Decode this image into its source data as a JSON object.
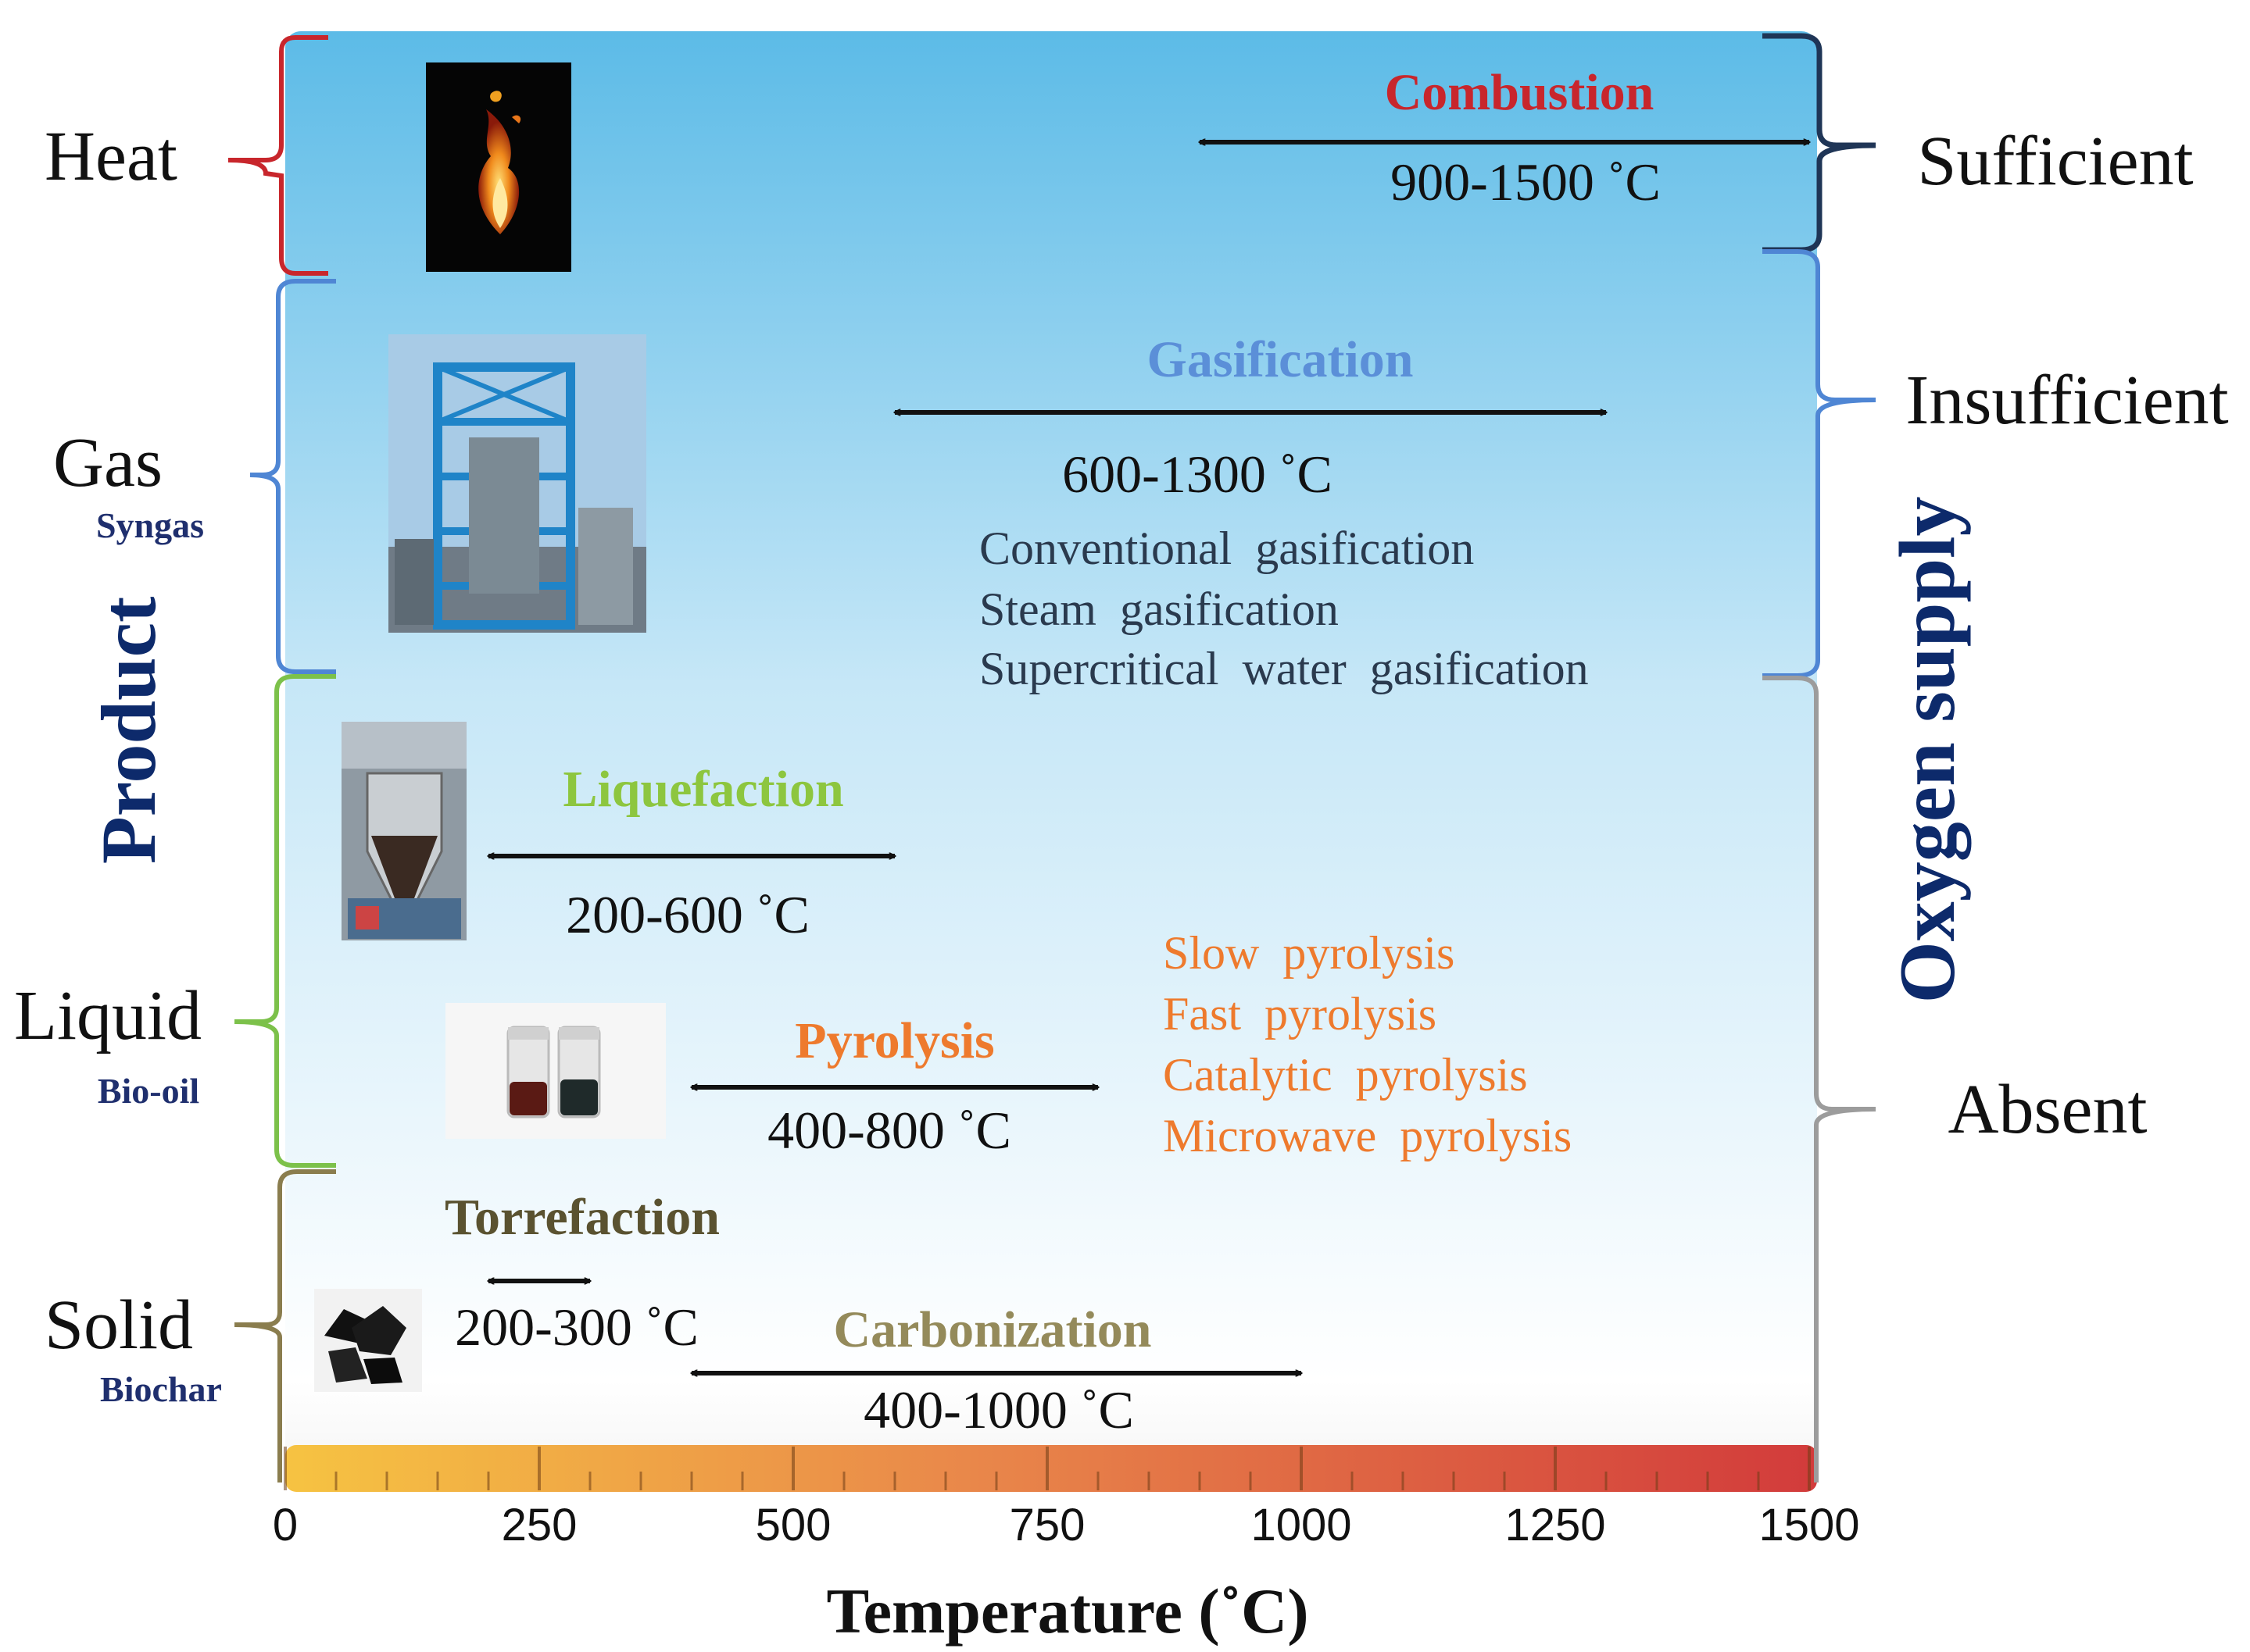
{
  "product_axis": {
    "title": "Product",
    "levels": [
      {
        "key": "heat",
        "label": "Heat",
        "sublabel": "",
        "color": "#c8262c"
      },
      {
        "key": "gas",
        "label": "Gas",
        "sublabel": "Syngas",
        "color": "#4f86d4"
      },
      {
        "key": "liquid",
        "label": "Liquid",
        "sublabel": "Bio-oil",
        "color": "#7cc14a"
      },
      {
        "key": "solid",
        "label": "Solid",
        "sublabel": "Biochar",
        "color": "#8a7d4e"
      }
    ]
  },
  "oxygen_axis": {
    "title": "Oxygen supply",
    "levels": [
      {
        "key": "sufficient",
        "label": "Sufficient",
        "color": "#1f3556"
      },
      {
        "key": "insufficient",
        "label": "Insufficient",
        "color": "#4f86d4"
      },
      {
        "key": "absent",
        "label": "Absent",
        "color": "#9c9c9c"
      }
    ]
  },
  "processes": [
    {
      "key": "combustion",
      "name": "Combustion",
      "range_label": "900-1500 ˚C",
      "range": [
        900,
        1500
      ],
      "color": "#c8262c",
      "variants": []
    },
    {
      "key": "gasification",
      "name": "Gasification",
      "range_label": "600-1300 ˚C",
      "range": [
        600,
        1300
      ],
      "color": "#5b8fd8",
      "variants": [
        "Conventional  gasification",
        "Steam  gasification",
        "Supercritical  water  gasification"
      ],
      "variant_color": "#2a3a4e"
    },
    {
      "key": "liquefaction",
      "name": "Liquefaction",
      "range_label": "200-600 ˚C",
      "range": [
        200,
        600
      ],
      "color": "#8dc63f",
      "variants": []
    },
    {
      "key": "pyrolysis",
      "name": "Pyrolysis",
      "range_label": "400-800 ˚C",
      "range": [
        400,
        800
      ],
      "color": "#ee7a2d",
      "variants": [
        "Slow  pyrolysis",
        "Fast  pyrolysis",
        "Catalytic  pyrolysis",
        "Microwave  pyrolysis"
      ],
      "variant_color": "#ee7a2d"
    },
    {
      "key": "torrefaction",
      "name": "Torrefaction",
      "range_label": "200-300 ˚C",
      "range": [
        200,
        300
      ],
      "color": "#5a5230",
      "variants": []
    },
    {
      "key": "carbonization",
      "name": "Carbonization",
      "range_label": "400-1000 ˚C",
      "range": [
        400,
        1000
      ],
      "color": "#948a5a",
      "variants": []
    }
  ],
  "temperature_axis": {
    "label": "Temperature (˚C)",
    "min": 0,
    "max": 1500,
    "ticks": [
      "0",
      "250",
      "500",
      "750",
      "1000",
      "1250",
      "1500"
    ],
    "tick_values": [
      0,
      250,
      500,
      750,
      1000,
      1250,
      1500
    ],
    "gradient_start": "#f6c342",
    "gradient_mid": "#e9874a",
    "gradient_end": "#d23b3b"
  },
  "colors": {
    "panel_top": "#5cbbe7",
    "panel_bottom": "#ffffff",
    "title_navy": "#0d2a6b",
    "sublabel_navy": "#1f2f6e"
  },
  "images": [
    {
      "key": "flame",
      "icon": "flame-icon"
    },
    {
      "key": "plant",
      "icon": "gasification-plant-icon"
    },
    {
      "key": "reactor",
      "icon": "liquefaction-reactor-icon"
    },
    {
      "key": "bottles",
      "icon": "bio-oil-bottles-icon"
    },
    {
      "key": "char",
      "icon": "biochar-icon"
    }
  ]
}
